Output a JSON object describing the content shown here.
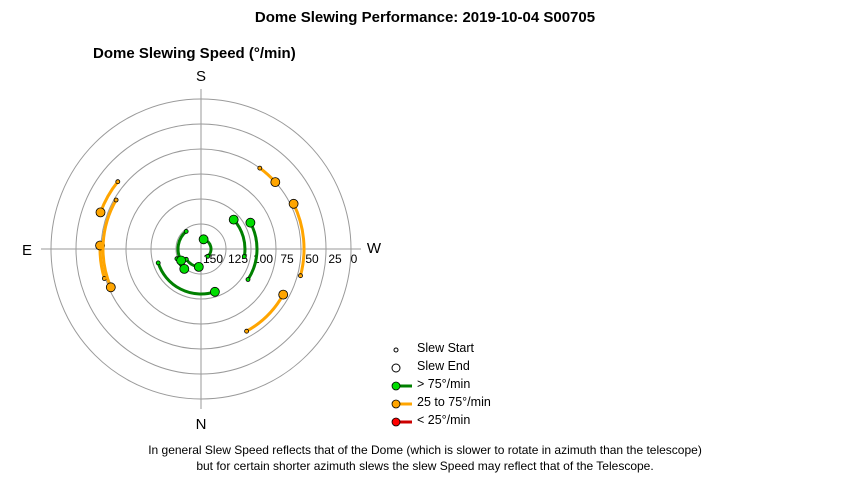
{
  "header": {
    "title": "Dome Slewing Performance: 2019-10-04 S00705",
    "subtitle": "Dome Slewing Speed (°/min)"
  },
  "footer": {
    "line1": "In general Slew Speed reflects that of the Dome (which is slower to rotate in azimuth than the telescope)",
    "line2": "but for certain shorter azimuth slews the slew Speed may reflect that of the Telescope."
  },
  "legend": {
    "items": [
      {
        "key": "start",
        "label": "Slew Start"
      },
      {
        "key": "end",
        "label": "Slew End"
      },
      {
        "key": "fast",
        "label": "> 75°/min",
        "color": "#008000",
        "marker": "#00dd00"
      },
      {
        "key": "medium",
        "label": "25 to 75°/min",
        "color": "#ffa500",
        "marker": "#ffa500"
      },
      {
        "key": "slow",
        "label": "< 25°/min",
        "color": "#cc0000",
        "marker": "#ff0000"
      }
    ]
  },
  "chart_data": {
    "type": "polar",
    "title": "Dome Slewing Speed (°/min)",
    "radial_axis": {
      "ticks": [
        "150",
        "125",
        "100",
        "75",
        "50",
        "25",
        "0"
      ],
      "reversed": true,
      "range": [
        150,
        0
      ]
    },
    "compass": {
      "S": "S",
      "W": "W",
      "N": "N",
      "E": "E"
    },
    "grid": true,
    "legend_position": "bottom-right",
    "slews": [
      {
        "category": "fast",
        "speed": 94,
        "start_az": 123,
        "end_az": 62
      },
      {
        "category": "fast",
        "speed": 106,
        "start_az": 100,
        "end_az": 48
      },
      {
        "category": "fast",
        "speed": 105,
        "start_az": 252,
        "end_az": 162
      },
      {
        "category": "fast",
        "speed": 132,
        "start_az": 235,
        "end_az": 187
      },
      {
        "category": "fast",
        "speed": 124,
        "start_az": 248,
        "end_az": 220
      },
      {
        "category": "fast",
        "speed": 127,
        "start_az": 320,
        "end_az": 240
      },
      {
        "category": "fast",
        "speed": 140,
        "start_az": 137,
        "end_az": 15
      },
      {
        "category": "medium",
        "speed": 56,
        "start_az": 151,
        "end_az": 119
      },
      {
        "category": "medium",
        "speed": 47,
        "start_az": 105,
        "end_az": 64
      },
      {
        "category": "medium",
        "speed": 49,
        "start_az": 253,
        "end_az": 272
      },
      {
        "category": "medium",
        "speed": 43,
        "start_az": 309,
        "end_az": 290
      },
      {
        "category": "medium",
        "speed": 52,
        "start_az": 300,
        "end_az": 247
      },
      {
        "category": "medium",
        "speed": 50,
        "start_az": 36,
        "end_az": 48
      }
    ]
  }
}
